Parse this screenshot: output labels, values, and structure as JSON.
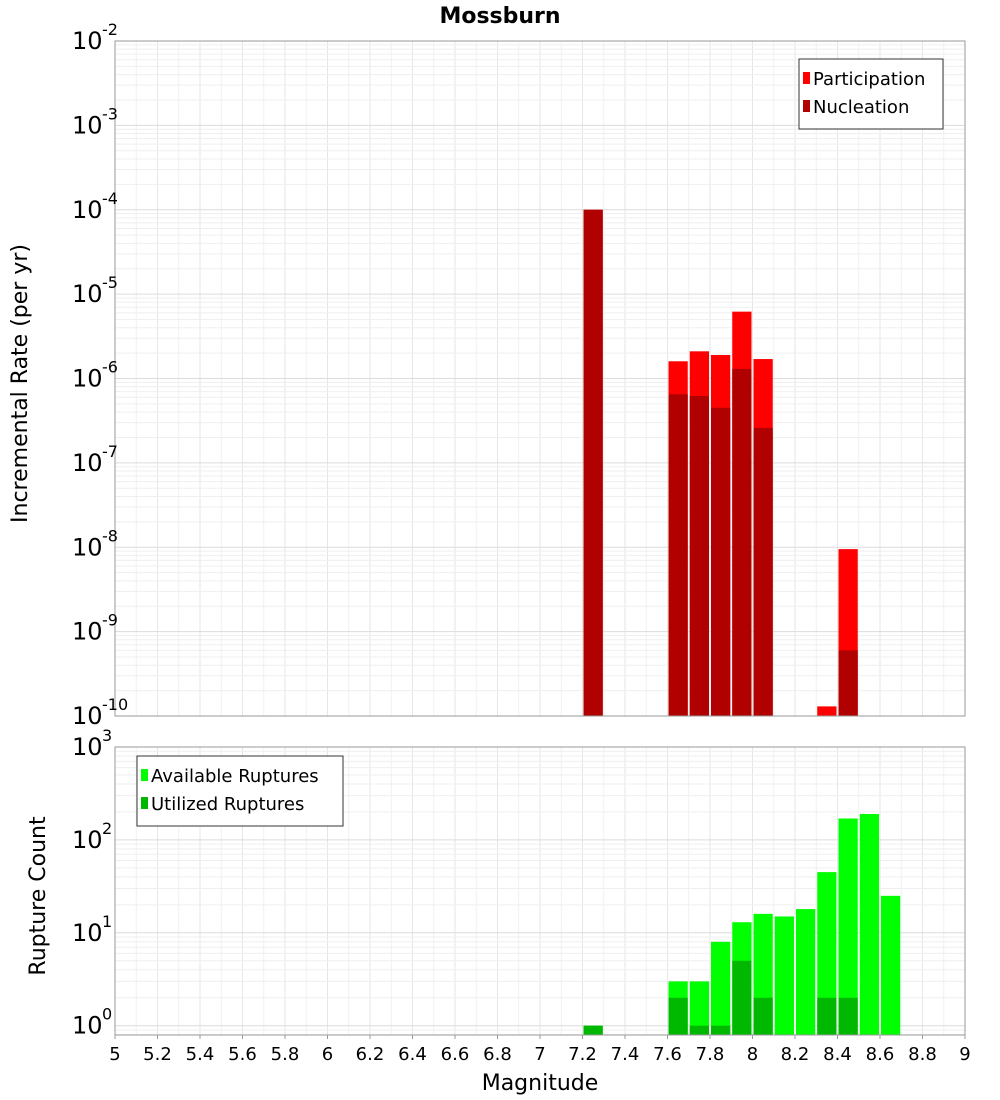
{
  "chart_data": [
    {
      "type": "bar",
      "title": "Mossburn",
      "xlabel": "",
      "ylabel": "Incremental Rate (per yr)",
      "yscale": "log",
      "ylim_exponents": [
        -10,
        -2
      ],
      "xlim": [
        5,
        9
      ],
      "grid": true,
      "legend_position": "top-right",
      "bar_width": 0.1,
      "series": [
        {
          "name": "Participation",
          "color": "#ff0000",
          "x": [
            7.25,
            7.65,
            7.75,
            7.85,
            7.95,
            8.05,
            8.35,
            8.45
          ],
          "values": [
            0.0001,
            1.6e-06,
            2.1e-06,
            1.9e-06,
            6.2e-06,
            1.7e-06,
            1.3e-10,
            9.5e-09
          ]
        },
        {
          "name": "Nucleation",
          "color": "#b00000",
          "x": [
            7.25,
            7.65,
            7.75,
            7.85,
            7.95,
            8.05,
            8.45
          ],
          "values": [
            0.0001,
            6.5e-07,
            6.2e-07,
            4.5e-07,
            1.3e-06,
            2.6e-07,
            6e-10
          ]
        }
      ],
      "y_tick_exponents": [
        -10,
        -9,
        -8,
        -7,
        -6,
        -5,
        -4,
        -3,
        -2
      ]
    },
    {
      "type": "bar",
      "title": "",
      "xlabel": "Magnitude",
      "ylabel": "Rupture Count",
      "yscale": "log",
      "ylim_exponents": [
        -0.1,
        3
      ],
      "xlim": [
        5,
        9
      ],
      "grid": true,
      "legend_position": "top-left",
      "bar_width": 0.1,
      "series": [
        {
          "name": "Available Ruptures",
          "color": "#00ff00",
          "x": [
            7.25,
            7.65,
            7.75,
            7.85,
            7.95,
            8.05,
            8.15,
            8.25,
            8.35,
            8.45,
            8.55,
            8.65
          ],
          "values": [
            1,
            3,
            3,
            8,
            13,
            16,
            15,
            18,
            45,
            170,
            190,
            25
          ]
        },
        {
          "name": "Utilized Ruptures",
          "color": "#00b800",
          "x": [
            7.25,
            7.65,
            7.75,
            7.85,
            7.95,
            8.05,
            8.35,
            8.45
          ],
          "values": [
            1,
            2,
            1,
            1,
            5,
            2,
            2,
            2
          ]
        }
      ],
      "y_tick_exponents": [
        0,
        1,
        2,
        3
      ],
      "x_ticks": [
        "5",
        "5.2",
        "5.4",
        "5.6",
        "5.8",
        "6",
        "6.2",
        "6.4",
        "6.6",
        "6.8",
        "7",
        "7.2",
        "7.4",
        "7.6",
        "7.8",
        "8",
        "8.2",
        "8.4",
        "8.6",
        "8.8",
        "9"
      ]
    }
  ]
}
